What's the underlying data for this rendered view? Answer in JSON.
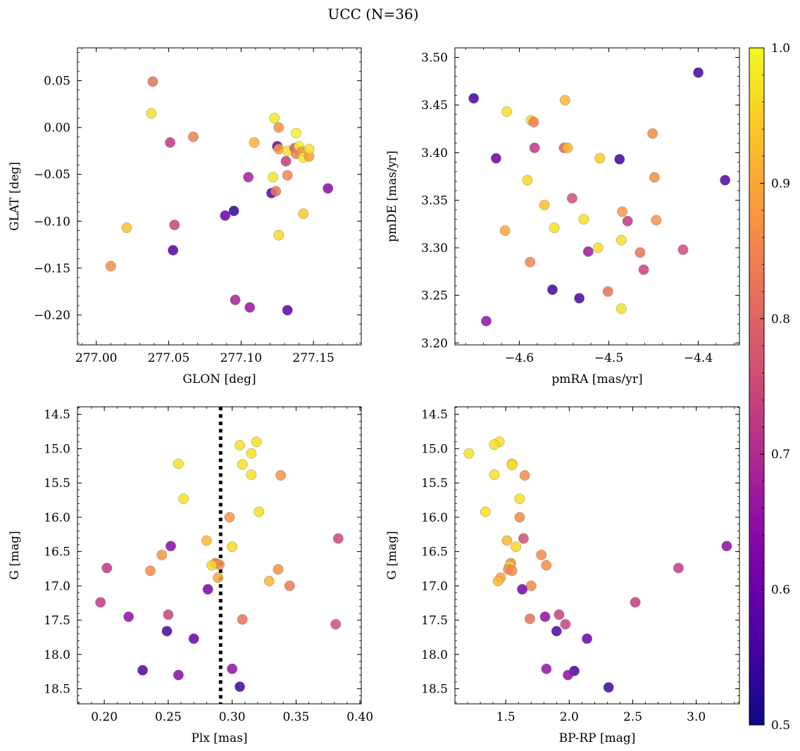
{
  "title": "UCC (N=36)",
  "colorbar": {
    "cmap": "plasma",
    "range": [
      0.5,
      1.0
    ],
    "ticks": [
      0.5,
      0.6,
      0.7,
      0.8,
      0.9,
      1.0
    ],
    "tick_labels": [
      "0.5",
      "0.6",
      "0.7",
      "0.8",
      "0.9",
      "1.0"
    ]
  },
  "chart_data": [
    {
      "id": "glon-glat",
      "type": "scatter",
      "xlabel": "GLON [deg]",
      "ylabel": "GLAT [deg]",
      "xlim": [
        276.987,
        277.183
      ],
      "ylim": [
        -0.232,
        0.085
      ],
      "xticks": [
        277.0,
        277.05,
        277.1,
        277.15
      ],
      "xtick_labels": [
        "277.00",
        "277.05",
        "277.10",
        "277.15"
      ],
      "yticks": [
        -0.2,
        -0.15,
        -0.1,
        -0.05,
        0.0,
        0.05
      ],
      "ytick_labels": [
        "−0.20",
        "−0.15",
        "−0.10",
        "−0.05",
        "0.00",
        "0.05"
      ],
      "points": [
        {
          "x": 277.039,
          "y": 0.049,
          "c": 0.82
        },
        {
          "x": 277.038,
          "y": 0.015,
          "c": 0.97
        },
        {
          "x": 277.051,
          "y": -0.016,
          "c": 0.72
        },
        {
          "x": 277.067,
          "y": -0.01,
          "c": 0.84
        },
        {
          "x": 277.021,
          "y": -0.107,
          "c": 0.93
        },
        {
          "x": 277.054,
          "y": -0.104,
          "c": 0.74
        },
        {
          "x": 277.053,
          "y": -0.131,
          "c": 0.57
        },
        {
          "x": 277.01,
          "y": -0.148,
          "c": 0.86
        },
        {
          "x": 277.089,
          "y": -0.094,
          "c": 0.6
        },
        {
          "x": 277.095,
          "y": -0.089,
          "c": 0.53
        },
        {
          "x": 277.105,
          "y": -0.053,
          "c": 0.68
        },
        {
          "x": 277.096,
          "y": -0.184,
          "c": 0.68
        },
        {
          "x": 277.106,
          "y": -0.192,
          "c": 0.66
        },
        {
          "x": 277.132,
          "y": -0.195,
          "c": 0.58
        },
        {
          "x": 277.109,
          "y": -0.016,
          "c": 0.91
        },
        {
          "x": 277.123,
          "y": 0.01,
          "c": 0.98
        },
        {
          "x": 277.126,
          "y": 0.0,
          "c": 0.87
        },
        {
          "x": 277.125,
          "y": -0.02,
          "c": 0.59
        },
        {
          "x": 277.126,
          "y": -0.023,
          "c": 0.89
        },
        {
          "x": 277.122,
          "y": -0.053,
          "c": 0.98
        },
        {
          "x": 277.121,
          "y": -0.07,
          "c": 0.57
        },
        {
          "x": 277.124,
          "y": -0.068,
          "c": 0.82
        },
        {
          "x": 277.131,
          "y": -0.036,
          "c": 0.73
        },
        {
          "x": 277.132,
          "y": -0.025,
          "c": 0.97
        },
        {
          "x": 277.132,
          "y": -0.051,
          "c": 0.85
        },
        {
          "x": 277.126,
          "y": -0.115,
          "c": 0.96
        },
        {
          "x": 277.143,
          "y": -0.092,
          "c": 0.94
        },
        {
          "x": 277.138,
          "y": -0.006,
          "c": 0.99
        },
        {
          "x": 277.137,
          "y": -0.022,
          "c": 0.78
        },
        {
          "x": 277.138,
          "y": -0.028,
          "c": 0.84
        },
        {
          "x": 277.14,
          "y": -0.02,
          "c": 0.99
        },
        {
          "x": 277.142,
          "y": -0.026,
          "c": 0.87
        },
        {
          "x": 277.143,
          "y": -0.032,
          "c": 0.98
        },
        {
          "x": 277.147,
          "y": -0.031,
          "c": 0.89
        },
        {
          "x": 277.147,
          "y": -0.023,
          "c": 0.97
        },
        {
          "x": 277.16,
          "y": -0.065,
          "c": 0.64
        }
      ]
    },
    {
      "id": "pmra-pmde",
      "type": "scatter",
      "xlabel": "pmRA [mas/yr]",
      "ylabel": "pmDE [mas/yr]",
      "xlim": [
        -4.672,
        -4.354
      ],
      "ylim": [
        3.198,
        3.51
      ],
      "xticks": [
        -4.6,
        -4.5,
        -4.4
      ],
      "xtick_labels": [
        "−4.6",
        "−4.5",
        "−4.4"
      ],
      "yticks": [
        3.2,
        3.25,
        3.3,
        3.35,
        3.4,
        3.45,
        3.5
      ],
      "ytick_labels": [
        "3.20",
        "3.25",
        "3.30",
        "3.35",
        "3.40",
        "3.45",
        "3.50"
      ],
      "points": [
        {
          "x": -4.651,
          "y": 3.457,
          "c": 0.55
        },
        {
          "x": -4.614,
          "y": 3.443,
          "c": 0.97
        },
        {
          "x": -4.587,
          "y": 3.434,
          "c": 0.96
        },
        {
          "x": -4.584,
          "y": 3.432,
          "c": 0.84
        },
        {
          "x": -4.549,
          "y": 3.455,
          "c": 0.92
        },
        {
          "x": -4.4,
          "y": 3.484,
          "c": 0.55
        },
        {
          "x": -4.626,
          "y": 3.394,
          "c": 0.6
        },
        {
          "x": -4.583,
          "y": 3.405,
          "c": 0.72
        },
        {
          "x": -4.55,
          "y": 3.405,
          "c": 0.8
        },
        {
          "x": -4.546,
          "y": 3.405,
          "c": 0.92
        },
        {
          "x": -4.51,
          "y": 3.394,
          "c": 0.95
        },
        {
          "x": -4.488,
          "y": 3.393,
          "c": 0.55
        },
        {
          "x": -4.451,
          "y": 3.42,
          "c": 0.86
        },
        {
          "x": -4.449,
          "y": 3.374,
          "c": 0.86
        },
        {
          "x": -4.37,
          "y": 3.371,
          "c": 0.57
        },
        {
          "x": -4.591,
          "y": 3.371,
          "c": 0.96
        },
        {
          "x": -4.572,
          "y": 3.345,
          "c": 0.93
        },
        {
          "x": -4.541,
          "y": 3.352,
          "c": 0.76
        },
        {
          "x": -4.528,
          "y": 3.33,
          "c": 0.97
        },
        {
          "x": -4.485,
          "y": 3.338,
          "c": 0.88
        },
        {
          "x": -4.479,
          "y": 3.328,
          "c": 0.72
        },
        {
          "x": -4.447,
          "y": 3.329,
          "c": 0.87
        },
        {
          "x": -4.616,
          "y": 3.318,
          "c": 0.9
        },
        {
          "x": -4.561,
          "y": 3.321,
          "c": 0.97
        },
        {
          "x": -4.486,
          "y": 3.308,
          "c": 0.97
        },
        {
          "x": -4.512,
          "y": 3.3,
          "c": 0.97
        },
        {
          "x": -4.523,
          "y": 3.296,
          "c": 0.67
        },
        {
          "x": -4.465,
          "y": 3.295,
          "c": 0.82
        },
        {
          "x": -4.417,
          "y": 3.298,
          "c": 0.76
        },
        {
          "x": -4.588,
          "y": 3.285,
          "c": 0.85
        },
        {
          "x": -4.461,
          "y": 3.277,
          "c": 0.74
        },
        {
          "x": -4.563,
          "y": 3.256,
          "c": 0.55
        },
        {
          "x": -4.501,
          "y": 3.254,
          "c": 0.82
        },
        {
          "x": -4.533,
          "y": 3.247,
          "c": 0.56
        },
        {
          "x": -4.486,
          "y": 3.236,
          "c": 0.97
        },
        {
          "x": -4.637,
          "y": 3.223,
          "c": 0.65
        }
      ]
    },
    {
      "id": "plx-g",
      "type": "scatter",
      "xlabel": "Plx [mas]",
      "ylabel": "G [mag]",
      "xlim": [
        0.179,
        0.401
      ],
      "ylim": [
        18.72,
        14.39
      ],
      "y_inverted": true,
      "vline": {
        "x": 0.291,
        "style": "dotted",
        "color": "#000000"
      },
      "xticks": [
        0.2,
        0.25,
        0.3,
        0.35,
        0.4
      ],
      "xtick_labels": [
        "0.20",
        "0.25",
        "0.30",
        "0.35",
        "0.40"
      ],
      "yticks": [
        14.5,
        15.0,
        15.5,
        16.0,
        16.5,
        17.0,
        17.5,
        18.0,
        18.5
      ],
      "ytick_labels": [
        "14.5",
        "15.0",
        "15.5",
        "16.0",
        "16.5",
        "17.0",
        "17.5",
        "18.0",
        "18.5"
      ],
      "points": [
        {
          "x": 0.319,
          "y": 14.9,
          "c": 0.97
        },
        {
          "x": 0.306,
          "y": 14.95,
          "c": 0.97
        },
        {
          "x": 0.315,
          "y": 15.07,
          "c": 0.97
        },
        {
          "x": 0.258,
          "y": 15.22,
          "c": 0.97
        },
        {
          "x": 0.308,
          "y": 15.23,
          "c": 0.97
        },
        {
          "x": 0.315,
          "y": 15.38,
          "c": 0.97
        },
        {
          "x": 0.338,
          "y": 15.39,
          "c": 0.87
        },
        {
          "x": 0.262,
          "y": 15.73,
          "c": 0.97
        },
        {
          "x": 0.321,
          "y": 15.92,
          "c": 0.97
        },
        {
          "x": 0.298,
          "y": 16.0,
          "c": 0.87
        },
        {
          "x": 0.383,
          "y": 16.31,
          "c": 0.75
        },
        {
          "x": 0.28,
          "y": 16.34,
          "c": 0.92
        },
        {
          "x": 0.252,
          "y": 16.42,
          "c": 0.64
        },
        {
          "x": 0.3,
          "y": 16.43,
          "c": 0.96
        },
        {
          "x": 0.245,
          "y": 16.55,
          "c": 0.87
        },
        {
          "x": 0.287,
          "y": 16.67,
          "c": 0.82
        },
        {
          "x": 0.29,
          "y": 16.69,
          "c": 0.86
        },
        {
          "x": 0.284,
          "y": 16.7,
          "c": 0.96
        },
        {
          "x": 0.202,
          "y": 16.74,
          "c": 0.72
        },
        {
          "x": 0.336,
          "y": 16.76,
          "c": 0.87
        },
        {
          "x": 0.236,
          "y": 16.78,
          "c": 0.86
        },
        {
          "x": 0.345,
          "y": 17.0,
          "c": 0.83
        },
        {
          "x": 0.329,
          "y": 16.93,
          "c": 0.92
        },
        {
          "x": 0.289,
          "y": 16.88,
          "c": 0.9
        },
        {
          "x": 0.281,
          "y": 17.05,
          "c": 0.61
        },
        {
          "x": 0.197,
          "y": 17.24,
          "c": 0.73
        },
        {
          "x": 0.25,
          "y": 17.42,
          "c": 0.74
        },
        {
          "x": 0.219,
          "y": 17.45,
          "c": 0.65
        },
        {
          "x": 0.308,
          "y": 17.49,
          "c": 0.82
        },
        {
          "x": 0.381,
          "y": 17.56,
          "c": 0.76
        },
        {
          "x": 0.249,
          "y": 17.66,
          "c": 0.56
        },
        {
          "x": 0.27,
          "y": 17.77,
          "c": 0.6
        },
        {
          "x": 0.3,
          "y": 18.21,
          "c": 0.65
        },
        {
          "x": 0.23,
          "y": 18.23,
          "c": 0.57
        },
        {
          "x": 0.258,
          "y": 18.3,
          "c": 0.64
        },
        {
          "x": 0.306,
          "y": 18.47,
          "c": 0.55
        }
      ]
    },
    {
      "id": "bprp-g",
      "type": "scatter",
      "xlabel": "BP-RP [mag]",
      "ylabel": "G [mag]",
      "xlim": [
        1.1,
        3.34
      ],
      "ylim": [
        18.72,
        14.39
      ],
      "y_inverted": true,
      "xticks": [
        1.5,
        2.0,
        2.5,
        3.0
      ],
      "xtick_labels": [
        "1.5",
        "2.0",
        "2.5",
        "3.0"
      ],
      "yticks": [
        14.5,
        15.0,
        15.5,
        16.0,
        16.5,
        17.0,
        17.5,
        18.0,
        18.5
      ],
      "ytick_labels": [
        "14.5",
        "15.0",
        "15.5",
        "16.0",
        "16.5",
        "17.0",
        "17.5",
        "18.0",
        "18.5"
      ],
      "points": [
        {
          "x": 1.45,
          "y": 14.9,
          "c": 0.97
        },
        {
          "x": 1.41,
          "y": 14.94,
          "c": 0.97
        },
        {
          "x": 1.21,
          "y": 15.07,
          "c": 0.97
        },
        {
          "x": 1.55,
          "y": 15.22,
          "c": 0.97
        },
        {
          "x": 1.55,
          "y": 15.24,
          "c": 0.97
        },
        {
          "x": 1.41,
          "y": 15.38,
          "c": 0.97
        },
        {
          "x": 1.65,
          "y": 15.39,
          "c": 0.86
        },
        {
          "x": 1.61,
          "y": 15.73,
          "c": 0.97
        },
        {
          "x": 1.34,
          "y": 15.92,
          "c": 0.97
        },
        {
          "x": 1.61,
          "y": 16.0,
          "c": 0.86
        },
        {
          "x": 1.64,
          "y": 16.31,
          "c": 0.76
        },
        {
          "x": 1.51,
          "y": 16.34,
          "c": 0.92
        },
        {
          "x": 1.58,
          "y": 16.43,
          "c": 0.96
        },
        {
          "x": 3.24,
          "y": 16.42,
          "c": 0.64
        },
        {
          "x": 1.78,
          "y": 16.55,
          "c": 0.86
        },
        {
          "x": 1.54,
          "y": 16.67,
          "c": 0.86
        },
        {
          "x": 1.82,
          "y": 16.7,
          "c": 0.86
        },
        {
          "x": 1.53,
          "y": 16.71,
          "c": 0.96
        },
        {
          "x": 2.86,
          "y": 16.74,
          "c": 0.73
        },
        {
          "x": 1.52,
          "y": 16.76,
          "c": 0.86
        },
        {
          "x": 1.55,
          "y": 16.78,
          "c": 0.86
        },
        {
          "x": 1.46,
          "y": 16.88,
          "c": 0.9
        },
        {
          "x": 1.44,
          "y": 16.93,
          "c": 0.92
        },
        {
          "x": 1.7,
          "y": 17.0,
          "c": 0.86
        },
        {
          "x": 1.63,
          "y": 17.05,
          "c": 0.61
        },
        {
          "x": 2.52,
          "y": 17.24,
          "c": 0.73
        },
        {
          "x": 1.92,
          "y": 17.42,
          "c": 0.74
        },
        {
          "x": 1.81,
          "y": 17.45,
          "c": 0.65
        },
        {
          "x": 1.69,
          "y": 17.48,
          "c": 0.82
        },
        {
          "x": 1.97,
          "y": 17.56,
          "c": 0.74
        },
        {
          "x": 1.9,
          "y": 17.66,
          "c": 0.56
        },
        {
          "x": 2.14,
          "y": 17.77,
          "c": 0.6
        },
        {
          "x": 1.82,
          "y": 18.21,
          "c": 0.66
        },
        {
          "x": 2.04,
          "y": 18.24,
          "c": 0.56
        },
        {
          "x": 1.99,
          "y": 18.3,
          "c": 0.65
        },
        {
          "x": 2.31,
          "y": 18.48,
          "c": 0.55
        }
      ]
    }
  ]
}
